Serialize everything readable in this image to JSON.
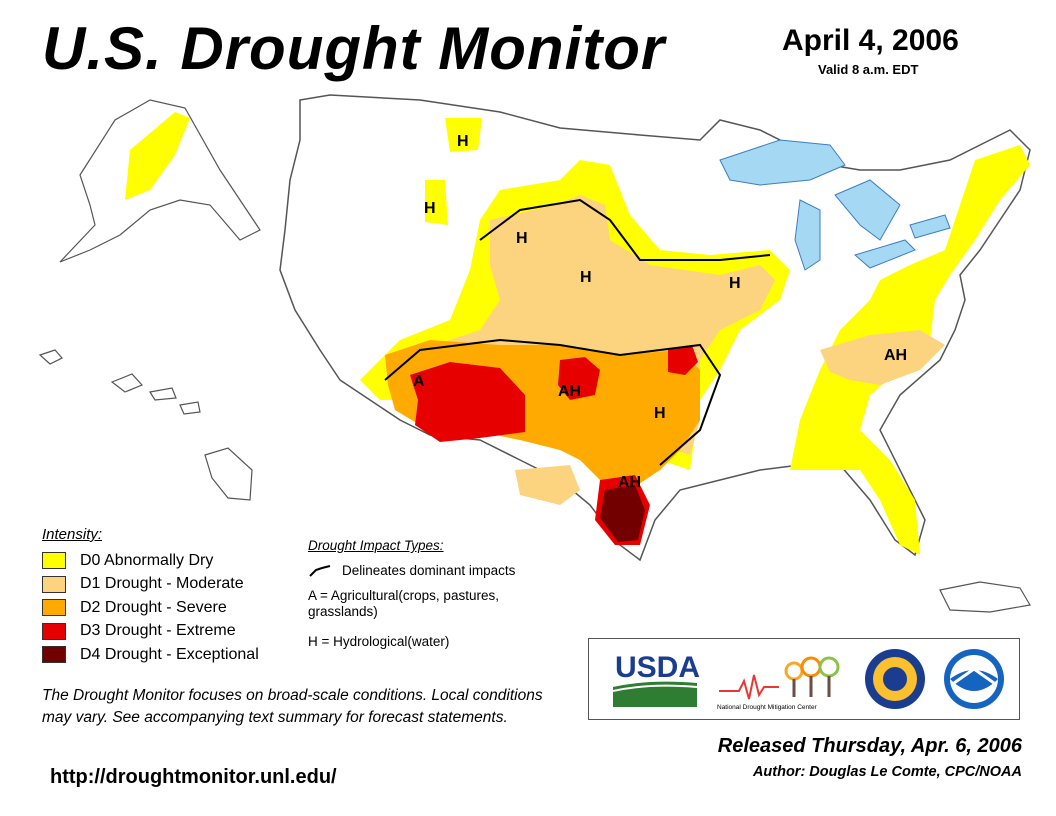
{
  "header": {
    "title": "U.S. Drought Monitor",
    "date": "April 4, 2006",
    "valid": "Valid 8 a.m. EDT"
  },
  "colors": {
    "D0": "#FFFF00",
    "D1": "#FCD37F",
    "D2": "#FFAA00",
    "D3": "#E60000",
    "D4": "#730000",
    "water": "#A5D8F3",
    "land": "#FFFFFF"
  },
  "map": {
    "impact_labels": [
      {
        "text": "H",
        "region": "western-montana"
      },
      {
        "text": "H",
        "region": "idaho-montana-border"
      },
      {
        "text": "H",
        "region": "wyoming-north"
      },
      {
        "text": "H",
        "region": "nebraska"
      },
      {
        "text": "H",
        "region": "iowa-illinois"
      },
      {
        "text": "A",
        "region": "arizona"
      },
      {
        "text": "AH",
        "region": "texas-panhandle"
      },
      {
        "text": "H",
        "region": "oklahoma-arkansas"
      },
      {
        "text": "AH",
        "region": "south-texas"
      },
      {
        "text": "AH",
        "region": "north-carolina"
      }
    ]
  },
  "legend": {
    "title": "Intensity:",
    "items": [
      {
        "code": "D0",
        "label": "D0 Abnormally Dry",
        "color": "#FFFF00"
      },
      {
        "code": "D1",
        "label": "D1 Drought - Moderate",
        "color": "#FCD37F"
      },
      {
        "code": "D2",
        "label": "D2 Drought - Severe",
        "color": "#FFAA00"
      },
      {
        "code": "D3",
        "label": "D3 Drought - Extreme",
        "color": "#E60000"
      },
      {
        "code": "D4",
        "label": "D4 Drought - Exceptional",
        "color": "#730000"
      }
    ]
  },
  "impacts": {
    "title": "Drought Impact Types:",
    "delineates": "Delineates dominant impacts",
    "agricultural": "A = Agricultural(crops, pastures, grasslands)",
    "hydrological": "H = Hydrological(water)"
  },
  "note": "The Drought Monitor focuses on broad-scale conditions. Local conditions may vary. See accompanying text summary for forecast statements.",
  "url": "http://droughtmonitor.unl.edu/",
  "logos": {
    "usda": "USDA",
    "ndmc": "National Drought Mitigation Center"
  },
  "released": "Released Thursday, Apr. 6, 2006",
  "author": "Author: Douglas Le Comte, CPC/NOAA"
}
